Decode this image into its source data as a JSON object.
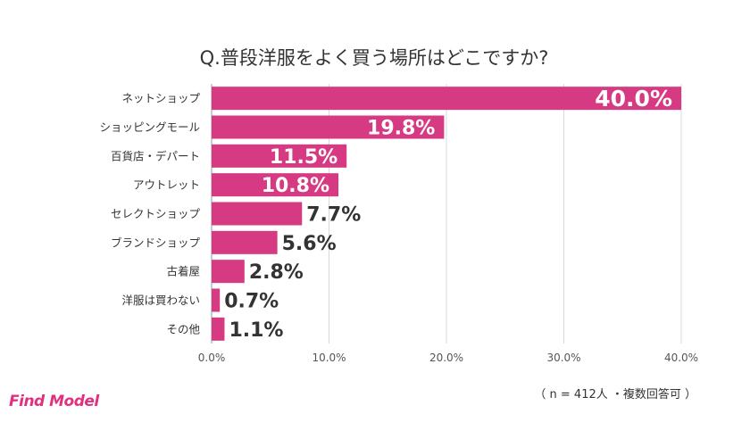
{
  "chart_data": {
    "type": "bar",
    "orientation": "horizontal",
    "title": "Q.普段洋服をよく買う場所はどこですか?",
    "categories": [
      "ネットショップ",
      "ショッピングモール",
      "百貨店・デパート",
      "アウトレット",
      "セレクトショップ",
      "ブランドショップ",
      "古着屋",
      "洋服は買わない",
      "その他"
    ],
    "values": [
      40.0,
      19.8,
      11.5,
      10.8,
      7.7,
      5.6,
      2.8,
      0.7,
      1.1
    ],
    "value_labels": [
      "40.0%",
      "19.8%",
      "11.5%",
      "10.8%",
      "7.7%",
      "5.6%",
      "2.8%",
      "0.7%",
      "1.1%"
    ],
    "xlim": [
      0,
      40
    ],
    "x_ticks": [
      0,
      10,
      20,
      30,
      40
    ],
    "x_tick_labels": [
      "0.0%",
      "10.0%",
      "20.0%",
      "30.0%",
      "40.0%"
    ],
    "grid": true,
    "bar_color": "#d63a82",
    "label_inside_color": "#ffffff",
    "label_outside_color": "#333333"
  },
  "footer": {
    "logo": "Find Model",
    "note": "（ n = 412人 ・複数回答可 ）"
  },
  "colors": {
    "brand": "#e0307f"
  }
}
